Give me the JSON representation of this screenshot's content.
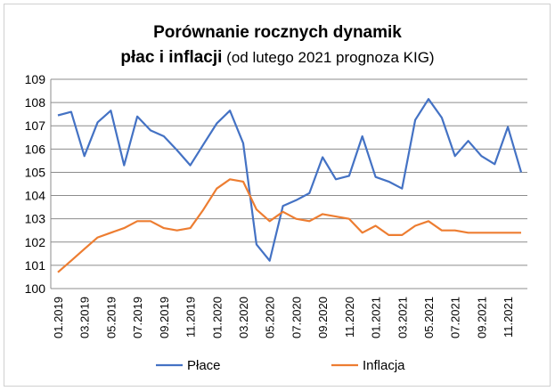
{
  "chart_data": {
    "type": "line",
    "title_line1": "Porównanie rocznych dynamik",
    "title_line2_bold": "płac i inflacji",
    "title_line2_note": " (od lutego 2021 prognoza KIG)",
    "ylim": [
      100,
      109
    ],
    "yticks": [
      100,
      101,
      102,
      103,
      104,
      105,
      106,
      107,
      108,
      109
    ],
    "grid": true,
    "legend_position": "bottom",
    "x": [
      "01.2019",
      "02.2019",
      "03.2019",
      "04.2019",
      "05.2019",
      "06.2019",
      "07.2019",
      "08.2019",
      "09.2019",
      "10.2019",
      "11.2019",
      "12.2019",
      "01.2020",
      "02.2020",
      "03.2020",
      "04.2020",
      "05.2020",
      "06.2020",
      "07.2020",
      "08.2020",
      "09.2020",
      "10.2020",
      "11.2020",
      "12.2020",
      "01.2021",
      "02.2021",
      "03.2021",
      "04.2021",
      "05.2021",
      "06.2021",
      "07.2021",
      "08.2021",
      "09.2021",
      "10.2021",
      "11.2021",
      "12.2021"
    ],
    "xtick_labels": [
      "01.2019",
      "03.2019",
      "05.2019",
      "07.2019",
      "09.2019",
      "11.2019",
      "01.2020",
      "03.2020",
      "05.2020",
      "07.2020",
      "09.2020",
      "11.2020",
      "01.2021",
      "03.2021",
      "05.2021",
      "07.2021",
      "09.2021",
      "11.2021"
    ],
    "series": [
      {
        "name": "Płace",
        "color": "#4472c4",
        "values": [
          107.45,
          107.6,
          105.7,
          107.15,
          107.65,
          105.3,
          107.4,
          106.8,
          106.55,
          105.95,
          105.3,
          106.2,
          107.1,
          107.65,
          106.25,
          101.9,
          101.2,
          103.55,
          103.8,
          104.1,
          105.65,
          104.7,
          104.85,
          106.55,
          104.8,
          104.6,
          104.3,
          107.25,
          108.15,
          107.35,
          105.7,
          106.35,
          105.7,
          105.35,
          106.95,
          105.0
        ]
      },
      {
        "name": "Inflacja",
        "color": "#ed7d31",
        "values": [
          100.7,
          101.2,
          101.7,
          102.2,
          102.4,
          102.6,
          102.9,
          102.9,
          102.6,
          102.5,
          102.6,
          103.4,
          104.3,
          104.7,
          104.6,
          103.4,
          102.9,
          103.3,
          103.0,
          102.9,
          103.2,
          103.1,
          103.0,
          102.4,
          102.7,
          102.3,
          102.3,
          102.7,
          102.9,
          102.5,
          102.5,
          102.4,
          102.4,
          102.4,
          102.4,
          102.4
        ]
      }
    ]
  }
}
